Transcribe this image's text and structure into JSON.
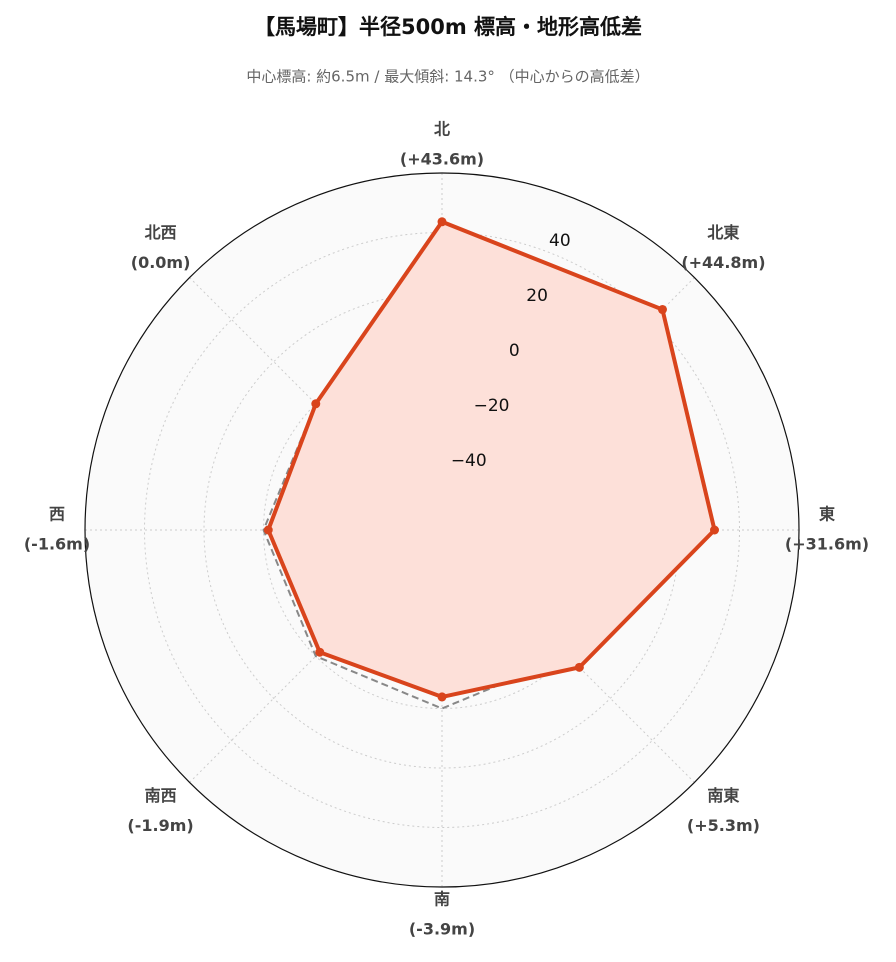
{
  "chart_data": {
    "type": "radar",
    "title": "【馬場町】半径500m 標高・地形高低差",
    "subtitle": "中心標高: 約6.5m / 最大傾斜: 14.3° （中心からの高低差）",
    "categories": [
      "北",
      "北東",
      "東",
      "南東",
      "南",
      "南西",
      "西",
      "北西"
    ],
    "series": [
      {
        "color": "#d9441c",
        "fill": "#fde0d9",
        "values": [
          43.6,
          44.8,
          31.6,
          5.3,
          -3.9,
          -1.9,
          -1.6,
          0.0
        ],
        "value_labels": [
          "(+43.6m)",
          "(+44.8m)",
          "(+31.6m)",
          "(+5.3m)",
          "(-3.9m)",
          "(-1.9m)",
          "(-1.6m)",
          "(0.0m)"
        ]
      }
    ],
    "reference_value": 0,
    "ylim": [
      -60,
      60
    ],
    "yticks": [
      {
        "value": -40,
        "label": "−40"
      },
      {
        "value": -20,
        "label": "−20"
      },
      0,
      20,
      40
    ],
    "grid": true
  }
}
